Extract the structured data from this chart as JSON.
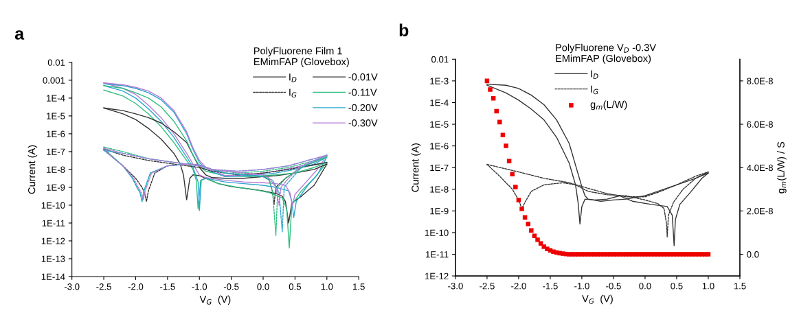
{
  "chart_data": [
    {
      "type": "line",
      "title": "a",
      "xlabel": "V$_{G}$  (V)",
      "ylabel": "Current (A)",
      "legend_title": "PolyFluorene Film 1\nEMimFAP (Glovebox)",
      "legend": "top right",
      "log": "y",
      "grid": false,
      "xlim": [
        -3,
        1.5
      ],
      "xticks": [
        {
          "value": -3,
          "label": "-3.0"
        },
        {
          "value": -2.5,
          "label": "-2.5"
        },
        {
          "value": -2,
          "label": "-2.0"
        },
        {
          "value": -1.5,
          "label": "-1.5"
        },
        {
          "value": -1,
          "label": "-1.0"
        },
        {
          "value": -0.5,
          "label": "-0.5"
        },
        {
          "value": 0,
          "label": "0.0"
        },
        {
          "value": 0.5,
          "label": "0.5"
        },
        {
          "value": 1,
          "label": "1.0"
        },
        {
          "value": 1.5,
          "label": "1.5"
        }
      ],
      "ylim": [
        1e-14,
        0.01
      ],
      "yticks": [
        {
          "value": 1e-14,
          "label": "1E-14"
        },
        {
          "value": 1e-13,
          "label": "1E-13"
        },
        {
          "value": 1e-12,
          "label": "1E-12"
        },
        {
          "value": 1e-11,
          "label": "1E-11"
        },
        {
          "value": 1e-10,
          "label": "1E-10"
        },
        {
          "value": 1e-09,
          "label": "1E-9"
        },
        {
          "value": 1e-08,
          "label": "1E-8"
        },
        {
          "value": 1e-07,
          "label": "1E-7"
        },
        {
          "value": 1e-06,
          "label": "1E-6"
        },
        {
          "value": 1e-05,
          "label": "1E-5"
        },
        {
          "value": 0.0001,
          "label": "1E-4"
        },
        0.001,
        0.01
      ],
      "annotations": [
        "-0.01V"
      ],
      "series": [
        {
          "name": "I$_{D}$",
          "color": "#333333",
          "line_style": "solid",
          "x": [
            -2.5,
            -2.2,
            -2.0,
            -1.8,
            -1.6,
            -1.4,
            -1.3,
            -1.25,
            -1.2,
            -1.15,
            -1.1,
            -1.0,
            -0.9,
            -0.7,
            -0.5,
            -0.2,
            0.0,
            0.2,
            0.3,
            0.35,
            0.4,
            0.45,
            0.6,
            0.8,
            1.0
          ],
          "values": [
            2.8e-05,
            1.3e-05,
            6.3e-06,
            2e-06,
            5e-07,
            8e-08,
            2e-08,
            5e-09,
            2e-10,
            3.2e-09,
            5e-09,
            4.5e-09,
            3.2e-09,
            1.6e-09,
            1.1e-09,
            8e-10,
            6.3e-10,
            4.5e-10,
            3.2e-10,
            1.6e-10,
            1e-11,
            1.3e-10,
            3.2e-10,
            1.3e-09,
            2e-08
          ]
        },
        {
          "name": "I$_{G}$",
          "color": "#333333",
          "line_style": "dashed",
          "x": [
            -2.5,
            -2.4,
            -2.2,
            -2.0,
            -1.9,
            -1.86,
            -1.83,
            -1.8,
            -1.7,
            -1.5,
            -1.2,
            -1.0,
            -0.8,
            -0.6,
            -0.3,
            0.0,
            0.1,
            0.15,
            0.17,
            0.2,
            0.35,
            0.6,
            1.0
          ],
          "values": [
            1.4e-07,
            6.3e-08,
            1.6e-08,
            3.2e-09,
            1e-09,
            5e-10,
            1.6e-10,
            6.3e-10,
            6.3e-09,
            1.6e-08,
            2e-08,
            1.8e-08,
            1e-08,
            6.3e-09,
            5e-09,
            4e-09,
            2.5e-09,
            5e-10,
            1e-10,
            1e-09,
            3.2e-09,
            1.3e-08,
            2.5e-08
          ]
        },
        {
          "name": "-0.11V",
          "color": "#2fbf7f",
          "line_style": "solid",
          "x": [
            -2.5,
            -2.2,
            -2.0,
            -1.8,
            -1.6,
            -1.4,
            -1.2,
            -1.1,
            -1.05,
            -1.02,
            -0.98,
            -0.9,
            -0.7,
            -0.4,
            -0.1,
            0.1,
            0.3,
            0.37,
            0.41,
            0.45,
            0.6,
            0.8,
            1.0
          ],
          "values": [
            0.00028,
            0.00013,
            5e-05,
            1.3e-05,
            2.5e-06,
            3.2e-07,
            3.2e-08,
            1e-08,
            2.5e-09,
            6.3e-11,
            2.5e-09,
            3.2e-09,
            1.6e-09,
            1e-09,
            7.1e-10,
            5e-10,
            2.5e-10,
            6.3e-11,
            4e-13,
            1e-10,
            6.3e-10,
            3.2e-09,
            2.5e-08
          ]
        },
        {
          "name": "-0.20V",
          "color": "#2aa6cf",
          "line_style": "solid",
          "x": [
            -2.5,
            -2.2,
            -2.0,
            -1.8,
            -1.6,
            -1.4,
            -1.2,
            -1.1,
            -1.02,
            -1.0,
            -0.97,
            -0.9,
            -0.6,
            -0.3,
            0.0,
            0.2,
            0.4,
            0.45,
            0.48,
            0.52,
            0.7,
            0.85,
            1.0
          ],
          "values": [
            0.0005,
            0.00025,
            0.0001,
            2.5e-05,
            5e-06,
            6.3e-07,
            5e-08,
            1.3e-08,
            2e-09,
            5e-11,
            2.5e-09,
            3.2e-09,
            2e-09,
            1.6e-09,
            1.3e-09,
            1e-09,
            6.3e-10,
            1.6e-10,
            2e-11,
            1.6e-10,
            1.3e-09,
            5e-09,
            5e-08
          ]
        },
        {
          "name": "-0.30V",
          "color": "#b57bd6",
          "line_style": "solid",
          "x": [
            -2.5,
            -2.2,
            -2.0,
            -1.8,
            -1.6,
            -1.4,
            -1.2,
            -1.1,
            -1.0,
            -0.9,
            -0.6,
            -0.3,
            0.0,
            0.2,
            0.35,
            0.42,
            0.46,
            0.5,
            0.7,
            0.85,
            1.0
          ],
          "values": [
            0.00071,
            0.00035,
            0.00016,
            4e-05,
            8e-06,
            1e-06,
            8e-08,
            2e-08,
            5e-09,
            3.5e-09,
            2.5e-09,
            2e-09,
            1.8e-09,
            1.6e-09,
            1.3e-09,
            5e-10,
            1e-10,
            4e-10,
            2.5e-09,
            1e-08,
            6.3e-08
          ]
        },
        {
          "color": "#333333",
          "line_style": "solid",
          "x": [
            -2.5,
            -2.2,
            -2.0,
            -1.8,
            -1.6,
            -1.4,
            -1.2,
            -1.1,
            -1.0,
            -0.9,
            -0.8,
            -0.6,
            -0.3,
            0.0,
            0.2,
            0.5,
            0.8,
            1.0
          ],
          "values": [
            2.8e-05,
            2e-05,
            1.3e-05,
            8e-06,
            4e-06,
            1.3e-06,
            3.2e-07,
            6.3e-08,
            1.3e-08,
            5e-09,
            3.5e-09,
            3.2e-09,
            3.2e-09,
            4e-09,
            4.5e-09,
            6.3e-09,
            1e-08,
            2e-08
          ]
        },
        {
          "color": "#2fbf7f",
          "line_style": "solid",
          "x": [
            -2.5,
            -2.2,
            -2.0,
            -1.8,
            -1.6,
            -1.4,
            -1.2,
            -1.1,
            -1.0,
            -0.9,
            -0.6,
            -0.2,
            0.2,
            0.5,
            0.8,
            1.0
          ],
          "values": [
            0.0005,
            0.00035,
            0.0002,
            0.0001,
            3.2e-05,
            5e-06,
            4e-07,
            6.3e-08,
            1.6e-08,
            8e-09,
            4.5e-09,
            4e-09,
            5e-09,
            6.3e-09,
            1.3e-08,
            2.5e-08
          ]
        },
        {
          "color": "#2aa6cf",
          "line_style": "solid",
          "x": [
            -2.5,
            -2.2,
            -2.0,
            -1.8,
            -1.6,
            -1.4,
            -1.2,
            -1.1,
            -1.0,
            -0.9,
            -0.6,
            -0.2,
            0.2,
            0.5,
            0.8,
            1.0
          ],
          "values": [
            0.00063,
            0.0005,
            0.00035,
            0.0002,
            8e-05,
            1.6e-05,
            1e-06,
            1.3e-07,
            2.5e-08,
            1e-08,
            4e-09,
            4.5e-09,
            6.3e-09,
            1e-08,
            2e-08,
            5e-08
          ]
        },
        {
          "color": "#b57bd6",
          "line_style": "solid",
          "x": [
            -2.5,
            -2.2,
            -2.0,
            -1.8,
            -1.6,
            -1.4,
            -1.2,
            -1.1,
            -1.0,
            -0.9,
            -0.6,
            -0.2,
            0.2,
            0.5,
            0.8,
            1.0
          ],
          "values": [
            0.00071,
            0.00056,
            0.0004,
            0.00025,
            0.0001,
            2e-05,
            1.3e-06,
            1.6e-07,
            3.2e-08,
            1.3e-08,
            4.5e-09,
            5e-09,
            8e-09,
            1.3e-08,
            2.5e-08,
            6.3e-08
          ]
        },
        {
          "color": "#333333",
          "line_style": "dashed",
          "x": [
            -2.5,
            -2.2,
            -1.8,
            -1.4,
            -1.0,
            -0.8,
            -0.4,
            0.0,
            0.4,
            0.7,
            1.0
          ],
          "values": [
            1.4e-07,
            6.3e-08,
            3.2e-08,
            2e-08,
            1.3e-08,
            8e-09,
            5e-09,
            6.3e-09,
            1e-08,
            1.6e-08,
            2.5e-08
          ]
        },
        {
          "color": "#2fbf7f",
          "line_style": "dashed",
          "x": [
            -2.5,
            -2.4,
            -2.2,
            -2.05,
            -1.98,
            -1.93,
            -1.9,
            -1.87,
            -1.77,
            -1.5,
            -1.2,
            -1.0,
            -0.8,
            -0.6,
            -0.3,
            0.0,
            0.1,
            0.15,
            0.2,
            0.23,
            0.35,
            0.6,
            1.0
          ],
          "values": [
            1.8e-07,
            7.1e-08,
            1.6e-08,
            3.2e-09,
            1e-09,
            5e-10,
            1.6e-10,
            6.3e-10,
            6.3e-09,
            1.6e-08,
            2e-08,
            1.8e-08,
            1e-08,
            6.3e-09,
            5e-09,
            4e-09,
            2.5e-09,
            5e-10,
            2e-12,
            1e-09,
            3.2e-09,
            1.3e-08,
            5e-08
          ]
        },
        {
          "color": "#2fbf7f",
          "line_style": "dashed",
          "x": [
            -2.5,
            -2.2,
            -1.8,
            -1.4,
            -1.0,
            -0.8,
            -0.4,
            0.0,
            0.4,
            0.7,
            1.0
          ],
          "values": [
            1.8e-07,
            1e-07,
            4e-08,
            2.5e-08,
            1.6e-08,
            1e-08,
            6.3e-09,
            8e-09,
            1.3e-08,
            2.5e-08,
            5e-08
          ]
        },
        {
          "color": "#2aa6cf",
          "line_style": "dashed",
          "x": [
            -2.5,
            -2.4,
            -2.2,
            -2.05,
            -1.98,
            -1.93,
            -1.9,
            -1.87,
            -1.77,
            -1.5,
            -1.2,
            -1.0,
            -0.8,
            -0.6,
            -0.3,
            0.0,
            0.15,
            0.25,
            0.3,
            0.33,
            0.45,
            0.6,
            1.0
          ],
          "values": [
            1.2e-07,
            6.3e-08,
            1.6e-08,
            3.2e-09,
            1e-09,
            5e-10,
            1.6e-10,
            6.3e-10,
            6.3e-09,
            1.6e-08,
            2e-08,
            1.8e-08,
            1e-08,
            6.3e-09,
            5e-09,
            4e-09,
            2.5e-09,
            5e-10,
            3.2e-12,
            1e-09,
            3.2e-09,
            1.3e-08,
            6.3e-08
          ]
        },
        {
          "color": "#2aa6cf",
          "line_style": "dashed",
          "x": [
            -2.5,
            -2.2,
            -1.8,
            -1.4,
            -1.0,
            -0.8,
            -0.4,
            0.0,
            0.4,
            0.7,
            1.0
          ],
          "values": [
            1.2e-07,
            8e-08,
            4e-08,
            2.5e-08,
            1.6e-08,
            1e-08,
            8e-09,
            1e-08,
            1.6e-08,
            3.2e-08,
            6.3e-08
          ]
        },
        {
          "color": "#b57bd6",
          "line_style": "dashed",
          "x": [
            -2.5,
            -2.4,
            -2.2,
            -2.03,
            -1.96,
            -1.91,
            -1.88,
            -1.85,
            -1.75,
            -1.5,
            -1.2,
            -1.0,
            -0.8,
            -0.6,
            -0.3,
            0.0,
            0.1,
            0.2,
            0.25,
            0.28,
            0.4,
            0.6,
            1.0
          ],
          "values": [
            1.6e-07,
            6.3e-08,
            1.6e-08,
            3.2e-09,
            1e-09,
            5e-10,
            2e-10,
            6.3e-10,
            6.3e-09,
            1.6e-08,
            2e-08,
            1.8e-08,
            1e-08,
            8e-09,
            6.3e-09,
            5e-09,
            3.2e-09,
            1e-09,
            1e-10,
            1e-09,
            3.2e-09,
            1.6e-08,
            6.3e-08
          ]
        },
        {
          "color": "#b57bd6",
          "line_style": "dashed",
          "x": [
            -2.5,
            -2.2,
            -1.8,
            -1.4,
            -1.0,
            -0.8,
            -0.4,
            0.0,
            0.4,
            0.7,
            1.0
          ],
          "values": [
            1.6e-07,
            8e-08,
            4e-08,
            2.5e-08,
            1.6e-08,
            1e-08,
            8e-09,
            1e-08,
            1.6e-08,
            3.2e-08,
            6.3e-08
          ]
        }
      ]
    },
    {
      "type": "line",
      "title": "b",
      "xlabel": "V$_{G}$  (V)",
      "ylabel": "Current (A)",
      "y2label": "g$_{m}$(L/W) / S",
      "legend_title": "PolyFluorene V$_{D}$ -0.3V\nEMimFAP (Glovebox)",
      "legend": "top right",
      "log": "y",
      "grid": false,
      "xlim": [
        -3,
        1.5
      ],
      "xticks": [
        {
          "value": -3,
          "label": "-3.0"
        },
        {
          "value": -2.5,
          "label": "-2.5"
        },
        {
          "value": -2,
          "label": "-2.0"
        },
        {
          "value": -1.5,
          "label": "-1.5"
        },
        {
          "value": -1,
          "label": "-1.0"
        },
        {
          "value": -0.5,
          "label": "-0.5"
        },
        {
          "value": 0,
          "label": "0.0"
        },
        {
          "value": 0.5,
          "label": "0.5"
        },
        {
          "value": 1,
          "label": "1.0"
        },
        {
          "value": 1.5,
          "label": "1.5"
        }
      ],
      "ylim": [
        1e-12,
        0.01
      ],
      "yticks": [
        {
          "value": 1e-12,
          "label": "1E-12"
        },
        {
          "value": 1e-11,
          "label": "1E-11"
        },
        {
          "value": 1e-10,
          "label": "1E-10"
        },
        {
          "value": 1e-09,
          "label": "1E-9"
        },
        {
          "value": 1e-08,
          "label": "1E-8"
        },
        {
          "value": 1e-07,
          "label": "1E-7"
        },
        {
          "value": 1e-06,
          "label": "1E-6"
        },
        {
          "value": 1e-05,
          "label": "1E-5"
        },
        {
          "value": 0.0001,
          "label": "1E-4"
        },
        {
          "value": 0.001,
          "label": "1E-3"
        },
        0.01
      ],
      "y2lim": [
        -1e-08,
        9e-08
      ],
      "y2ticks": [
        {
          "value": 0,
          "label": "0.0"
        },
        {
          "value": 2e-08,
          "label": "2.0E-8"
        },
        {
          "value": 4e-08,
          "label": "4.0E-8"
        },
        {
          "value": 6e-08,
          "label": "6.0E-8"
        },
        {
          "value": 8e-08,
          "label": "8.0E-8"
        }
      ],
      "series": [
        {
          "name": "I$_{D}$",
          "color": "#333333",
          "line_style": "solid",
          "x": [
            -2.5,
            -2.2,
            -2.0,
            -1.8,
            -1.6,
            -1.4,
            -1.2,
            -1.1,
            -1.0,
            -0.95,
            -0.9,
            -0.7,
            -0.5,
            -0.3,
            0.0,
            0.2,
            0.5,
            0.8,
            1.0
          ],
          "values": [
            0.00071,
            0.00063,
            0.00045,
            0.00022,
            8e-05,
            1.6e-05,
            1.3e-06,
            1.3e-07,
            1.3e-08,
            5e-09,
            3.5e-09,
            2.8e-09,
            3.2e-09,
            3.5e-09,
            5e-09,
            8e-09,
            1.6e-08,
            3.2e-08,
            5.6e-08
          ]
        },
        {
          "name": "I$_{G}$",
          "color": "#333333",
          "line_style": "dashed",
          "x": [
            -2.5,
            -2.3,
            -2.1,
            -2.0,
            -1.95,
            -1.9,
            -1.8,
            -1.6,
            -1.3,
            -1.1,
            -0.9,
            -0.6,
            -0.3,
            0.0,
            0.2,
            0.3,
            0.34,
            0.35,
            0.37,
            0.45,
            0.6,
            0.8,
            1.0
          ],
          "values": [
            1.4e-07,
            4e-08,
            1e-08,
            3.2e-09,
            1.3e-09,
            2.5e-09,
            8e-09,
            1.6e-08,
            2e-08,
            1.6e-08,
            8e-09,
            5.6e-09,
            5e-09,
            3.2e-09,
            2.2e-09,
            1.3e-09,
            2.5e-10,
            6.3e-11,
            6.3e-10,
            2.5e-09,
            1e-08,
            3.2e-08,
            6.3e-08
          ]
        },
        {
          "name": "g$_{m}$(L/W)",
          "type": "scatter",
          "axis": "y2",
          "marker": "square",
          "color": "#ee0000",
          "x": [
            -2.5,
            -2.45,
            -2.4,
            -2.35,
            -2.3,
            -2.25,
            -2.2,
            -2.15,
            -2.1,
            -2.05,
            -2.0,
            -1.95,
            -1.9,
            -1.85,
            -1.8,
            -1.75,
            -1.7,
            -1.65,
            -1.6,
            -1.55,
            -1.5,
            -1.45,
            -1.4,
            -1.35,
            -1.3,
            -1.25,
            -1.2,
            -1.15,
            -1.1,
            -1.05,
            -1.0,
            -0.95,
            -0.9,
            -0.85,
            -0.8,
            -0.75,
            -0.7,
            -0.65,
            -0.6,
            -0.55,
            -0.5,
            -0.45,
            -0.4,
            -0.35,
            -0.3,
            -0.25,
            -0.2,
            -0.15,
            -0.1,
            -0.05,
            0.0,
            0.05,
            0.1,
            0.15,
            0.2,
            0.25,
            0.3,
            0.35,
            0.4,
            0.45,
            0.5,
            0.55,
            0.6,
            0.65,
            0.7,
            0.75,
            0.8,
            0.85,
            0.9,
            0.95,
            1.0
          ],
          "values": [
            8e-08,
            7.6e-08,
            7.2e-08,
            6.6e-08,
            6.1e-08,
            5.5e-08,
            5e-08,
            4.3e-08,
            3.7e-08,
            3.1e-08,
            2.5e-08,
            2.1e-08,
            1.7e-08,
            1.4e-08,
            1.1e-08,
            8.5e-09,
            6.7e-09,
            5e-09,
            3.5e-09,
            2.5e-09,
            1.8e-09,
            1.2e-09,
            8e-10,
            5e-10,
            3e-10,
            1e-10,
            0,
            0,
            0,
            0,
            0,
            0,
            0,
            0,
            0,
            0,
            0,
            0,
            0,
            0,
            0,
            0,
            0,
            0,
            0,
            0,
            0,
            0,
            0,
            0,
            0,
            0,
            0,
            0,
            0,
            0,
            0,
            0,
            0,
            0,
            0,
            0,
            0,
            0,
            0,
            0,
            0,
            0,
            0,
            0,
            0
          ]
        },
        {
          "color": "#333333",
          "line_style": "solid",
          "x": [
            -2.5,
            -2.2,
            -2.0,
            -1.8,
            -1.6,
            -1.4,
            -1.2,
            -1.1,
            -1.06,
            -1.03,
            -1.0,
            -0.95,
            -0.8,
            -0.6,
            -0.4,
            -0.2,
            0.1,
            0.35,
            0.43,
            0.46,
            0.48,
            0.55,
            0.7,
            0.9,
            1.0
          ],
          "values": [
            0.00063,
            0.00028,
            0.00013,
            5e-05,
            1.6e-05,
            2.5e-06,
            1.6e-07,
            1.6e-08,
            2.5e-09,
            2.5e-10,
            1.6e-09,
            3.5e-09,
            3.2e-09,
            3.5e-09,
            5e-09,
            2.8e-09,
            2e-09,
            1.6e-09,
            6.3e-10,
            2.5e-11,
            4e-10,
            2e-09,
            6.3e-09,
            3.2e-08,
            5.6e-08
          ]
        },
        {
          "color": "#333333",
          "line_style": "dashed",
          "x": [
            -2.5,
            -2.0,
            -1.6,
            -1.2,
            -0.9,
            -0.6,
            -0.3,
            0.0,
            0.2,
            0.5,
            0.8,
            1.0
          ],
          "values": [
            1.4e-07,
            6.3e-08,
            3.2e-08,
            2e-08,
            1.1e-08,
            6.3e-09,
            4.5e-09,
            4.5e-09,
            7.1e-09,
            1.6e-08,
            4e-08,
            6.3e-08
          ]
        }
      ]
    }
  ]
}
